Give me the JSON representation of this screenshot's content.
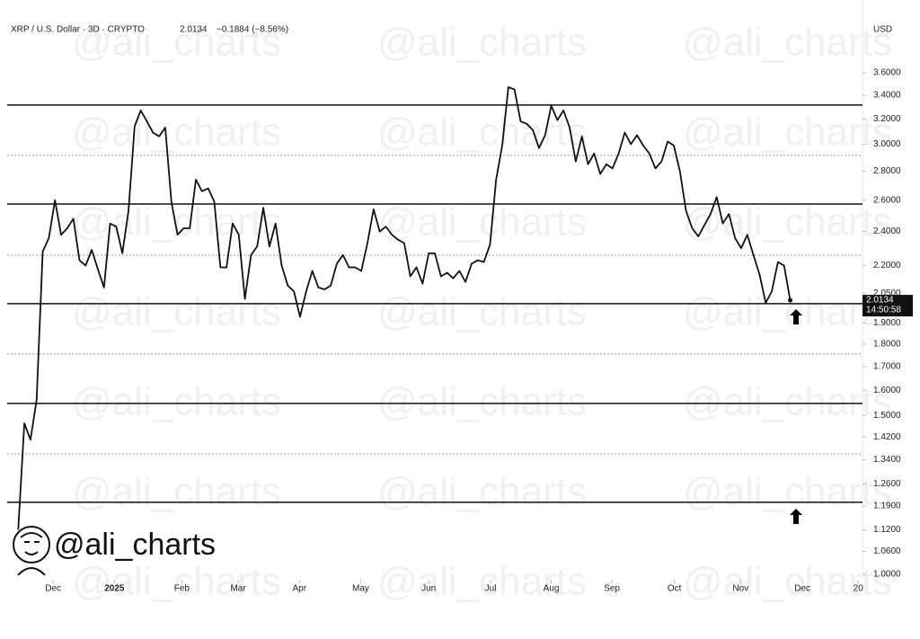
{
  "chart_data": {
    "type": "line",
    "title": "XRP / U.S. Dollar · 3D · CRYPTO",
    "last_price": 2.0134,
    "change": "−0.1884 (−8.56%)",
    "currency": "USD",
    "countdown": "14:50:58",
    "watermark": "@ali_charts",
    "log_scale": true,
    "color": "#111111",
    "series": [
      {
        "name": "XRP / U.S. Dollar",
        "color": "#111111",
        "values": [
          1.12,
          1.47,
          1.41,
          1.56,
          2.28,
          2.36,
          2.6,
          2.38,
          2.42,
          2.48,
          2.23,
          2.2,
          2.29,
          2.18,
          2.08,
          2.45,
          2.43,
          2.27,
          2.53,
          3.14,
          3.27,
          3.18,
          3.09,
          3.06,
          3.13,
          2.59,
          2.38,
          2.42,
          2.42,
          2.74,
          2.66,
          2.68,
          2.59,
          2.19,
          2.19,
          2.45,
          2.38,
          2.02,
          2.26,
          2.31,
          2.55,
          2.31,
          2.45,
          2.2,
          2.09,
          2.06,
          1.93,
          2.06,
          2.17,
          2.08,
          2.07,
          2.09,
          2.21,
          2.26,
          2.19,
          2.19,
          2.17,
          2.33,
          2.54,
          2.4,
          2.43,
          2.38,
          2.35,
          2.33,
          2.14,
          2.19,
          2.1,
          2.27,
          2.27,
          2.14,
          2.16,
          2.13,
          2.17,
          2.11,
          2.21,
          2.23,
          2.22,
          2.32,
          2.74,
          2.99,
          3.47,
          3.45,
          3.18,
          3.16,
          3.11,
          2.97,
          3.07,
          3.31,
          3.19,
          3.27,
          3.13,
          2.87,
          3.06,
          2.85,
          2.93,
          2.78,
          2.85,
          2.82,
          2.93,
          3.09,
          3.0,
          3.07,
          2.99,
          2.93,
          2.82,
          2.87,
          3.02,
          2.99,
          2.8,
          2.53,
          2.42,
          2.37,
          2.44,
          2.51,
          2.62,
          2.45,
          2.51,
          2.36,
          2.3,
          2.38,
          2.26,
          2.15,
          2.0,
          2.06,
          2.22,
          2.2,
          2.0134
        ]
      }
    ],
    "levels": [
      {
        "value": 3.315,
        "style": "solid"
      },
      {
        "value": 2.915,
        "style": "dashed"
      },
      {
        "value": 2.575,
        "style": "solid"
      },
      {
        "value": 2.259,
        "style": "dashed"
      },
      {
        "value": 1.996,
        "style": "solid"
      },
      {
        "value": 1.755,
        "style": "dashed"
      },
      {
        "value": 1.547,
        "style": "solid"
      },
      {
        "value": 1.36,
        "style": "dashed"
      },
      {
        "value": 1.2016,
        "style": "solid"
      }
    ],
    "xlim": [
      -1.8,
      137.8
    ],
    "xticks": [
      {
        "value": 5.7,
        "label": "Dec"
      },
      {
        "value": 15.7,
        "label": "2025"
      },
      {
        "value": 26.7,
        "label": "Feb"
      },
      {
        "value": 35.9,
        "label": "Mar"
      },
      {
        "value": 45.9,
        "label": "Apr"
      },
      {
        "value": 55.9,
        "label": "May"
      },
      {
        "value": 67.0,
        "label": "Jun"
      },
      {
        "value": 77.1,
        "label": "Jul"
      },
      {
        "value": 87.0,
        "label": "Aug"
      },
      {
        "value": 96.9,
        "label": "Sep"
      },
      {
        "value": 107.1,
        "label": "Oct"
      },
      {
        "value": 117.9,
        "label": "Nov"
      },
      {
        "value": 128.0,
        "label": "Dec"
      },
      {
        "value": 137.1,
        "label": "20"
      }
    ],
    "ylim": [
      0.986,
      4.336
    ],
    "yticks": [
      {
        "value": 3.6,
        "label": "3.6000"
      },
      {
        "value": 3.4,
        "label": "3.4000"
      },
      {
        "value": 3.2,
        "label": "3.2000"
      },
      {
        "value": 3.0,
        "label": "3.0000"
      },
      {
        "value": 2.8,
        "label": "2.8000"
      },
      {
        "value": 2.6,
        "label": "2.6000"
      },
      {
        "value": 2.4,
        "label": "2.4000"
      },
      {
        "value": 2.2,
        "label": "2.2000"
      },
      {
        "value": 2.05,
        "label": "2.0500"
      },
      {
        "value": 1.9,
        "label": "1.9000"
      },
      {
        "value": 1.8,
        "label": "1.8000"
      },
      {
        "value": 1.7,
        "label": "1.7000"
      },
      {
        "value": 1.6,
        "label": "1.6000"
      },
      {
        "value": 1.5,
        "label": "1.5000"
      },
      {
        "value": 1.42,
        "label": "1.4200"
      },
      {
        "value": 1.34,
        "label": "1.3400"
      },
      {
        "value": 1.26,
        "label": "1.2600"
      },
      {
        "value": 1.19,
        "label": "1.1900"
      },
      {
        "value": 1.12,
        "label": "1.1200"
      },
      {
        "value": 1.06,
        "label": "1.0600"
      },
      {
        "value": 1.0,
        "label": "1.0000"
      }
    ]
  }
}
